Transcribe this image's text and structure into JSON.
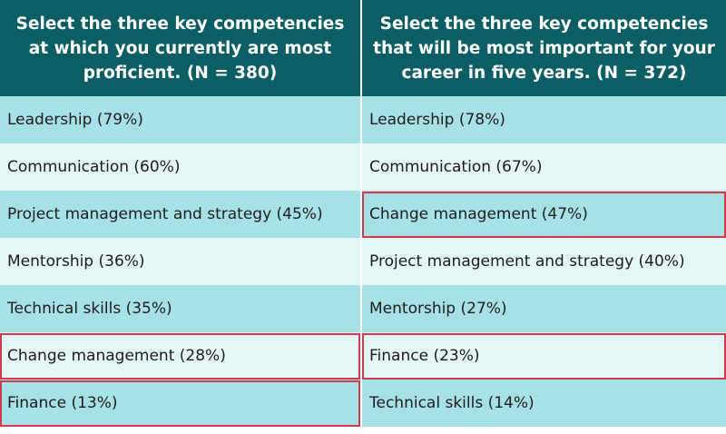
{
  "chart_data": {
    "type": "table",
    "columns": [
      {
        "header": "Select the three key competencies at which you currently are most proficient. (N = 380)",
        "rows": [
          {
            "text": "Leadership (79%)",
            "highlighted": false
          },
          {
            "text": "Communication (60%)",
            "highlighted": false
          },
          {
            "text": "Project management and strategy (45%)",
            "highlighted": false
          },
          {
            "text": "Mentorship (36%)",
            "highlighted": false
          },
          {
            "text": "Technical skills (35%)",
            "highlighted": false
          },
          {
            "text": "Change management (28%)",
            "highlighted": true
          },
          {
            "text": "Finance (13%)",
            "highlighted": true
          }
        ]
      },
      {
        "header": "Select the three key competencies that will be most important for your career in five years. (N = 372)",
        "rows": [
          {
            "text": "Leadership (78%)",
            "highlighted": false
          },
          {
            "text": "Communication (67%)",
            "highlighted": false
          },
          {
            "text": "Change management (47%)",
            "highlighted": true
          },
          {
            "text": "Project management and strategy (40%)",
            "highlighted": false
          },
          {
            "text": "Mentorship (27%)",
            "highlighted": false
          },
          {
            "text": "Finance (23%)",
            "highlighted": true
          },
          {
            "text": "Technical skills (14%)",
            "highlighted": false
          }
        ]
      }
    ]
  },
  "colors": {
    "header_bg": "#0b5e63",
    "row_dark": "#a6e1e6",
    "row_light": "#e5f6f7",
    "highlight_border": "#d33a4e"
  }
}
